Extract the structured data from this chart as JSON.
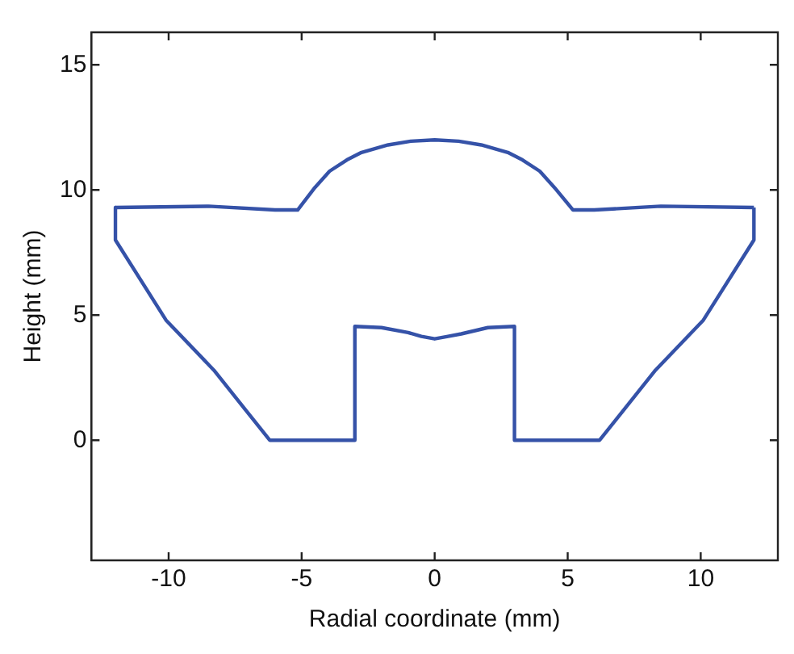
{
  "chart_data": {
    "type": "line",
    "xlabel": "Radial coordinate (mm)",
    "ylabel": "Height (mm)",
    "series": [
      {
        "color": "#3552a8",
        "x": [
          -12,
          -8.5,
          -6,
          -5.15,
          -4.5,
          -3.95,
          -3.3,
          -2.75,
          -1.75,
          -0.9,
          0,
          0.9,
          1.75,
          2.75,
          3.3,
          3.95,
          4.5,
          5.2,
          6,
          8.5,
          12
        ],
        "values": [
          9.3,
          9.35,
          9.2,
          9.2,
          10.1,
          10.75,
          11.2,
          11.5,
          11.8,
          11.95,
          12,
          11.95,
          11.8,
          11.5,
          11.2,
          10.75,
          10.1,
          9.2,
          9.2,
          9.35,
          9.3
        ]
      },
      {
        "color": "#3552a8",
        "x": [
          -12,
          -12,
          -10.1,
          -8.3,
          -6.2,
          -3,
          -3,
          -2,
          -1,
          -0.5,
          0,
          0.5,
          1,
          2,
          3,
          3,
          6.2,
          8.3,
          10.1,
          12,
          12
        ],
        "values": [
          9.3,
          8,
          4.8,
          2.8,
          0,
          0,
          4.55,
          4.5,
          4.3,
          4.15,
          4.05,
          4.15,
          4.25,
          4.5,
          4.55,
          0,
          0,
          2.8,
          4.8,
          8,
          9.3
        ]
      }
    ],
    "xlim": [
      -12.9,
      12.9
    ],
    "xticks": [
      -10,
      -5,
      0,
      5,
      10
    ],
    "ylim": [
      -4.8,
      16.3
    ],
    "yticks": [
      0,
      5,
      10,
      15
    ],
    "grid": false,
    "legend": false,
    "marker": "none",
    "line_style": "solid"
  }
}
